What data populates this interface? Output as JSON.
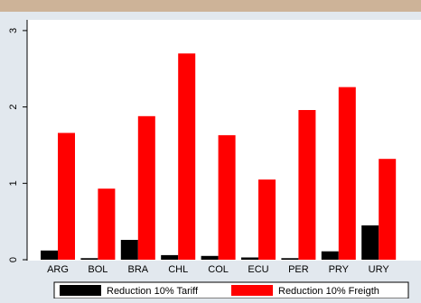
{
  "chart_data": {
    "type": "bar",
    "title": "",
    "xlabel": "",
    "ylabel": "",
    "categories": [
      "ARG",
      "BOL",
      "BRA",
      "CHL",
      "COL",
      "ECU",
      "PER",
      "PRY",
      "URY"
    ],
    "series": [
      {
        "name": "Reduction 10% Tariff",
        "color": "#000000",
        "values": [
          0.12,
          0.02,
          0.26,
          0.06,
          0.05,
          0.03,
          0.02,
          0.11,
          0.45
        ]
      },
      {
        "name": "Reduction 10% Freigth",
        "color": "#ff0000",
        "values": [
          1.66,
          0.93,
          1.88,
          2.7,
          1.63,
          1.05,
          1.96,
          2.26,
          1.32
        ]
      }
    ],
    "yticks": [
      0,
      1,
      2,
      3
    ],
    "ylim": [
      0,
      3.15
    ],
    "grid": false,
    "legend_position": "bottom"
  },
  "colors": {
    "background": "#e2e8ee",
    "plot_background": "#ffffff",
    "title_band": "#cdb398"
  }
}
